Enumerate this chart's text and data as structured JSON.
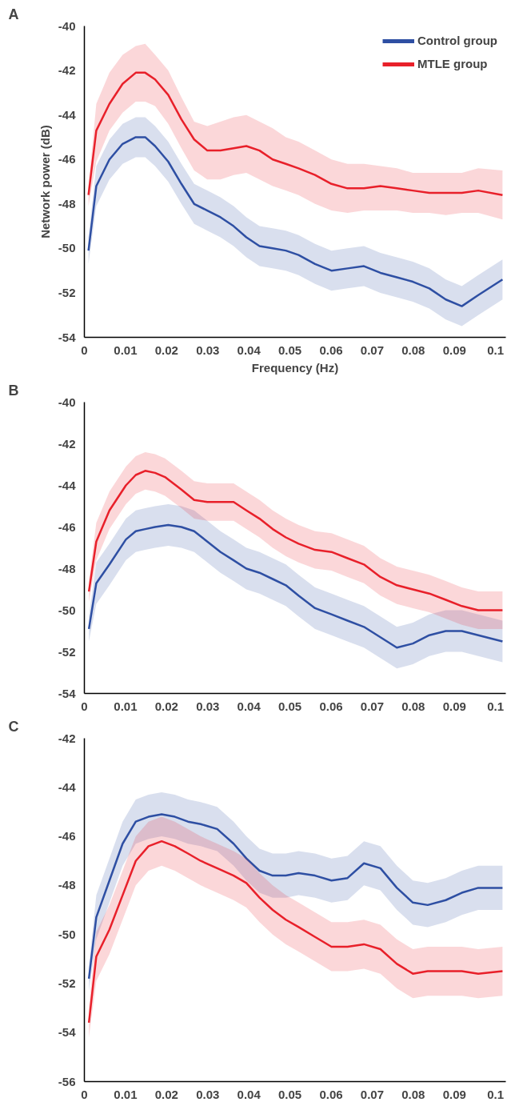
{
  "chart_data": [
    {
      "type": "line",
      "title": "A",
      "xlabel": "Frequency (Hz)",
      "ylabel": "Network power (dB)",
      "xlim": [
        0,
        0.1025
      ],
      "ylim": [
        -54,
        -40
      ],
      "xticks": [
        0,
        0.01,
        0.02,
        0.03,
        0.04,
        0.05,
        0.06,
        0.07,
        0.08,
        0.09,
        0.1
      ],
      "yticks": [
        -54,
        -52,
        -50,
        -48,
        -46,
        -44,
        -42,
        -40
      ],
      "grid": false,
      "legend": "top right",
      "marker": "none",
      "line_style": "solid",
      "series": [
        {
          "name": "Control group",
          "color": "#2e4fa3",
          "x": [
            0.001,
            0.0029,
            0.0061,
            0.0093,
            0.0125,
            0.0148,
            0.0172,
            0.0204,
            0.0236,
            0.0267,
            0.0299,
            0.0331,
            0.0363,
            0.0394,
            0.0426,
            0.0458,
            0.049,
            0.0521,
            0.0561,
            0.0601,
            0.064,
            0.068,
            0.072,
            0.076,
            0.0799,
            0.0839,
            0.0879,
            0.0918,
            0.0958,
            0.1017
          ],
          "values": [
            -50.1,
            -47.2,
            -46.0,
            -45.3,
            -45.0,
            -45.0,
            -45.4,
            -46.1,
            -47.1,
            -48.0,
            -48.3,
            -48.6,
            -49.0,
            -49.5,
            -49.9,
            -50.0,
            -50.1,
            -50.3,
            -50.7,
            -51.0,
            -50.9,
            -50.8,
            -51.1,
            -51.3,
            -51.5,
            -51.8,
            -52.3,
            -52.6,
            -52.1,
            -51.4
          ],
          "upper": [
            -49.5,
            -46.3,
            -45.1,
            -44.4,
            -44.1,
            -44.1,
            -44.5,
            -45.2,
            -46.2,
            -47.1,
            -47.4,
            -47.7,
            -48.1,
            -48.6,
            -49.0,
            -49.1,
            -49.2,
            -49.4,
            -49.8,
            -50.1,
            -50.0,
            -49.9,
            -50.2,
            -50.4,
            -50.6,
            -50.9,
            -51.4,
            -51.7,
            -51.2,
            -50.5
          ],
          "lower": [
            -50.7,
            -48.1,
            -46.9,
            -46.2,
            -45.9,
            -45.9,
            -46.3,
            -47.0,
            -48.0,
            -48.9,
            -49.2,
            -49.5,
            -49.9,
            -50.4,
            -50.8,
            -50.9,
            -51.0,
            -51.2,
            -51.6,
            -51.9,
            -51.8,
            -51.7,
            -52.0,
            -52.2,
            -52.4,
            -52.7,
            -53.2,
            -53.5,
            -53.0,
            -52.3
          ]
        },
        {
          "name": "MTLE group",
          "color": "#e8202a",
          "x": [
            0.001,
            0.0029,
            0.0061,
            0.0093,
            0.0125,
            0.0148,
            0.0172,
            0.0204,
            0.0236,
            0.0267,
            0.0299,
            0.0331,
            0.0363,
            0.0394,
            0.0426,
            0.0458,
            0.049,
            0.0521,
            0.0561,
            0.0601,
            0.064,
            0.068,
            0.072,
            0.076,
            0.0799,
            0.0839,
            0.0879,
            0.0918,
            0.0958,
            0.1017
          ],
          "values": [
            -47.6,
            -44.7,
            -43.5,
            -42.6,
            -42.1,
            -42.1,
            -42.4,
            -43.1,
            -44.2,
            -45.1,
            -45.6,
            -45.6,
            -45.5,
            -45.4,
            -45.6,
            -46.0,
            -46.2,
            -46.4,
            -46.7,
            -47.1,
            -47.3,
            -47.3,
            -47.2,
            -47.3,
            -47.4,
            -47.5,
            -47.5,
            -47.5,
            -47.4,
            -47.6
          ],
          "upper": [
            -47.2,
            -43.5,
            -42.1,
            -41.3,
            -40.9,
            -40.8,
            -41.3,
            -42.0,
            -43.2,
            -44.3,
            -44.5,
            -44.3,
            -44.1,
            -44.0,
            -44.3,
            -44.6,
            -45.0,
            -45.2,
            -45.6,
            -46.0,
            -46.2,
            -46.2,
            -46.3,
            -46.4,
            -46.6,
            -46.6,
            -46.6,
            -46.6,
            -46.4,
            -46.5
          ],
          "lower": [
            -48.1,
            -46.1,
            -44.7,
            -43.9,
            -43.4,
            -43.4,
            -43.6,
            -44.4,
            -45.5,
            -46.5,
            -46.9,
            -46.9,
            -46.7,
            -46.6,
            -46.9,
            -47.2,
            -47.4,
            -47.6,
            -48.0,
            -48.3,
            -48.4,
            -48.3,
            -48.3,
            -48.3,
            -48.4,
            -48.4,
            -48.5,
            -48.4,
            -48.4,
            -48.7
          ]
        }
      ]
    },
    {
      "type": "line",
      "title": "B",
      "xlim": [
        0,
        0.1025
      ],
      "ylim": [
        -54,
        -40
      ],
      "xticks": [
        0,
        0.01,
        0.02,
        0.03,
        0.04,
        0.05,
        0.06,
        0.07,
        0.08,
        0.09,
        0.1
      ],
      "yticks": [
        -54,
        -52,
        -50,
        -48,
        -46,
        -44,
        -42,
        -40
      ],
      "grid": false,
      "marker": "none",
      "line_style": "solid",
      "series": [
        {
          "color": "#2e4fa3",
          "x": [
            0.0011,
            0.0029,
            0.0061,
            0.0101,
            0.0125,
            0.0148,
            0.0172,
            0.0204,
            0.0236,
            0.0267,
            0.0299,
            0.0331,
            0.0363,
            0.0394,
            0.0426,
            0.0458,
            0.049,
            0.0521,
            0.0561,
            0.0601,
            0.064,
            0.068,
            0.072,
            0.076,
            0.0799,
            0.0839,
            0.0879,
            0.0918,
            0.0958,
            0.1017
          ],
          "values": [
            -50.9,
            -48.7,
            -47.8,
            -46.6,
            -46.2,
            -46.1,
            -46.0,
            -45.9,
            -46.0,
            -46.2,
            -46.7,
            -47.2,
            -47.6,
            -48.0,
            -48.2,
            -48.5,
            -48.8,
            -49.3,
            -49.9,
            -50.2,
            -50.5,
            -50.8,
            -51.3,
            -51.8,
            -51.6,
            -51.2,
            -51.0,
            -51.0,
            -51.2,
            -51.5
          ],
          "upper": [
            -50.3,
            -47.7,
            -46.8,
            -45.6,
            -45.2,
            -45.1,
            -45.0,
            -44.9,
            -45.0,
            -45.2,
            -45.7,
            -46.2,
            -46.6,
            -47.0,
            -47.2,
            -47.5,
            -47.8,
            -48.3,
            -48.9,
            -49.2,
            -49.5,
            -49.8,
            -50.3,
            -50.8,
            -50.6,
            -50.2,
            -50.0,
            -50.0,
            -50.2,
            -50.5
          ],
          "lower": [
            -51.5,
            -49.7,
            -48.8,
            -47.6,
            -47.2,
            -47.1,
            -47.0,
            -46.9,
            -47.0,
            -47.2,
            -47.7,
            -48.2,
            -48.6,
            -49.0,
            -49.2,
            -49.5,
            -49.8,
            -50.3,
            -50.9,
            -51.2,
            -51.5,
            -51.8,
            -52.3,
            -52.8,
            -52.6,
            -52.2,
            -52.0,
            -52.0,
            -52.2,
            -52.5
          ]
        },
        {
          "color": "#e8202a",
          "x": [
            0.0011,
            0.0029,
            0.0061,
            0.0101,
            0.0125,
            0.0148,
            0.0172,
            0.0196,
            0.0236,
            0.0267,
            0.0299,
            0.0331,
            0.0363,
            0.0394,
            0.0426,
            0.0458,
            0.049,
            0.0521,
            0.0561,
            0.0601,
            0.064,
            0.068,
            0.072,
            0.076,
            0.0799,
            0.0839,
            0.0879,
            0.0918,
            0.0958,
            0.1017
          ],
          "values": [
            -49.1,
            -46.7,
            -45.2,
            -44.0,
            -43.5,
            -43.3,
            -43.4,
            -43.6,
            -44.2,
            -44.7,
            -44.8,
            -44.8,
            -44.8,
            -45.2,
            -45.6,
            -46.1,
            -46.5,
            -46.8,
            -47.1,
            -47.2,
            -47.5,
            -47.8,
            -48.4,
            -48.8,
            -49.0,
            -49.2,
            -49.5,
            -49.8,
            -50.0,
            -50.0
          ],
          "upper": [
            -48.6,
            -45.8,
            -44.3,
            -43.1,
            -42.6,
            -42.4,
            -42.5,
            -42.7,
            -43.3,
            -43.8,
            -43.9,
            -43.9,
            -43.9,
            -44.3,
            -44.7,
            -45.2,
            -45.6,
            -45.9,
            -46.2,
            -46.3,
            -46.6,
            -46.9,
            -47.5,
            -47.9,
            -48.1,
            -48.3,
            -48.6,
            -48.9,
            -49.1,
            -49.1
          ],
          "lower": [
            -49.6,
            -47.6,
            -46.1,
            -44.9,
            -44.4,
            -44.2,
            -44.3,
            -44.5,
            -45.1,
            -45.6,
            -45.7,
            -45.7,
            -45.7,
            -46.1,
            -46.5,
            -47.0,
            -47.4,
            -47.7,
            -48.0,
            -48.1,
            -48.4,
            -48.7,
            -49.3,
            -49.7,
            -49.9,
            -50.1,
            -50.4,
            -50.7,
            -50.9,
            -50.9
          ]
        }
      ]
    },
    {
      "type": "line",
      "title": "C",
      "xlim": [
        0,
        0.1025
      ],
      "ylim": [
        -56,
        -42
      ],
      "xticks": [
        0,
        0.01,
        0.02,
        0.03,
        0.04,
        0.05,
        0.06,
        0.07,
        0.08,
        0.09,
        0.1
      ],
      "yticks": [
        -56,
        -54,
        -52,
        -50,
        -48,
        -46,
        -44,
        -42
      ],
      "grid": false,
      "marker": "none",
      "line_style": "solid",
      "series": [
        {
          "color": "#2e4fa3",
          "x": [
            0.0011,
            0.0029,
            0.0061,
            0.0093,
            0.0125,
            0.0156,
            0.0188,
            0.022,
            0.0252,
            0.0283,
            0.0323,
            0.0363,
            0.0394,
            0.0426,
            0.0458,
            0.049,
            0.0521,
            0.0561,
            0.0601,
            0.064,
            0.068,
            0.072,
            0.076,
            0.0799,
            0.0835,
            0.0879,
            0.0918,
            0.0958,
            0.1017
          ],
          "values": [
            -51.8,
            -49.3,
            -47.8,
            -46.3,
            -45.4,
            -45.2,
            -45.1,
            -45.2,
            -45.4,
            -45.5,
            -45.7,
            -46.3,
            -46.9,
            -47.4,
            -47.6,
            -47.6,
            -47.5,
            -47.6,
            -47.8,
            -47.7,
            -47.1,
            -47.3,
            -48.1,
            -48.7,
            -48.8,
            -48.6,
            -48.3,
            -48.1,
            -48.1
          ],
          "upper": [
            -51.3,
            -48.4,
            -46.9,
            -45.4,
            -44.5,
            -44.3,
            -44.2,
            -44.3,
            -44.5,
            -44.6,
            -44.8,
            -45.4,
            -46.0,
            -46.5,
            -46.7,
            -46.7,
            -46.6,
            -46.7,
            -46.9,
            -46.8,
            -46.2,
            -46.4,
            -47.2,
            -47.8,
            -47.9,
            -47.7,
            -47.4,
            -47.2,
            -47.2
          ],
          "lower": [
            -52.3,
            -50.2,
            -48.7,
            -47.2,
            -46.3,
            -46.1,
            -46.0,
            -46.1,
            -46.3,
            -46.4,
            -46.6,
            -47.2,
            -47.8,
            -48.3,
            -48.5,
            -48.5,
            -48.4,
            -48.5,
            -48.7,
            -48.6,
            -48.0,
            -48.2,
            -49.0,
            -49.6,
            -49.7,
            -49.5,
            -49.2,
            -49.0,
            -49.0
          ]
        },
        {
          "color": "#e8202a",
          "x": [
            0.0011,
            0.0029,
            0.0061,
            0.0093,
            0.0125,
            0.0156,
            0.0188,
            0.022,
            0.0252,
            0.0283,
            0.0323,
            0.0363,
            0.0394,
            0.0426,
            0.0458,
            0.049,
            0.0521,
            0.0561,
            0.0601,
            0.064,
            0.068,
            0.072,
            0.076,
            0.0799,
            0.0835,
            0.0879,
            0.0918,
            0.0958,
            0.1017
          ],
          "values": [
            -53.6,
            -50.9,
            -49.8,
            -48.4,
            -47.0,
            -46.4,
            -46.2,
            -46.4,
            -46.7,
            -47.0,
            -47.3,
            -47.6,
            -47.9,
            -48.5,
            -49.0,
            -49.4,
            -49.7,
            -50.1,
            -50.5,
            -50.5,
            -50.4,
            -50.6,
            -51.2,
            -51.6,
            -51.5,
            -51.5,
            -51.5,
            -51.6,
            -51.5
          ],
          "upper": [
            -53.0,
            -49.9,
            -48.8,
            -47.4,
            -46.0,
            -45.4,
            -45.2,
            -45.4,
            -45.7,
            -46.0,
            -46.3,
            -46.6,
            -46.9,
            -47.5,
            -48.0,
            -48.4,
            -48.7,
            -49.1,
            -49.5,
            -49.5,
            -49.4,
            -49.6,
            -50.2,
            -50.6,
            -50.5,
            -50.5,
            -50.5,
            -50.6,
            -50.5
          ],
          "lower": [
            -54.2,
            -51.9,
            -50.8,
            -49.4,
            -48.0,
            -47.4,
            -47.2,
            -47.4,
            -47.7,
            -48.0,
            -48.3,
            -48.6,
            -48.9,
            -49.5,
            -50.0,
            -50.4,
            -50.7,
            -51.1,
            -51.5,
            -51.5,
            -51.4,
            -51.6,
            -52.2,
            -52.6,
            -52.5,
            -52.5,
            -52.5,
            -52.6,
            -52.5
          ]
        }
      ]
    }
  ]
}
